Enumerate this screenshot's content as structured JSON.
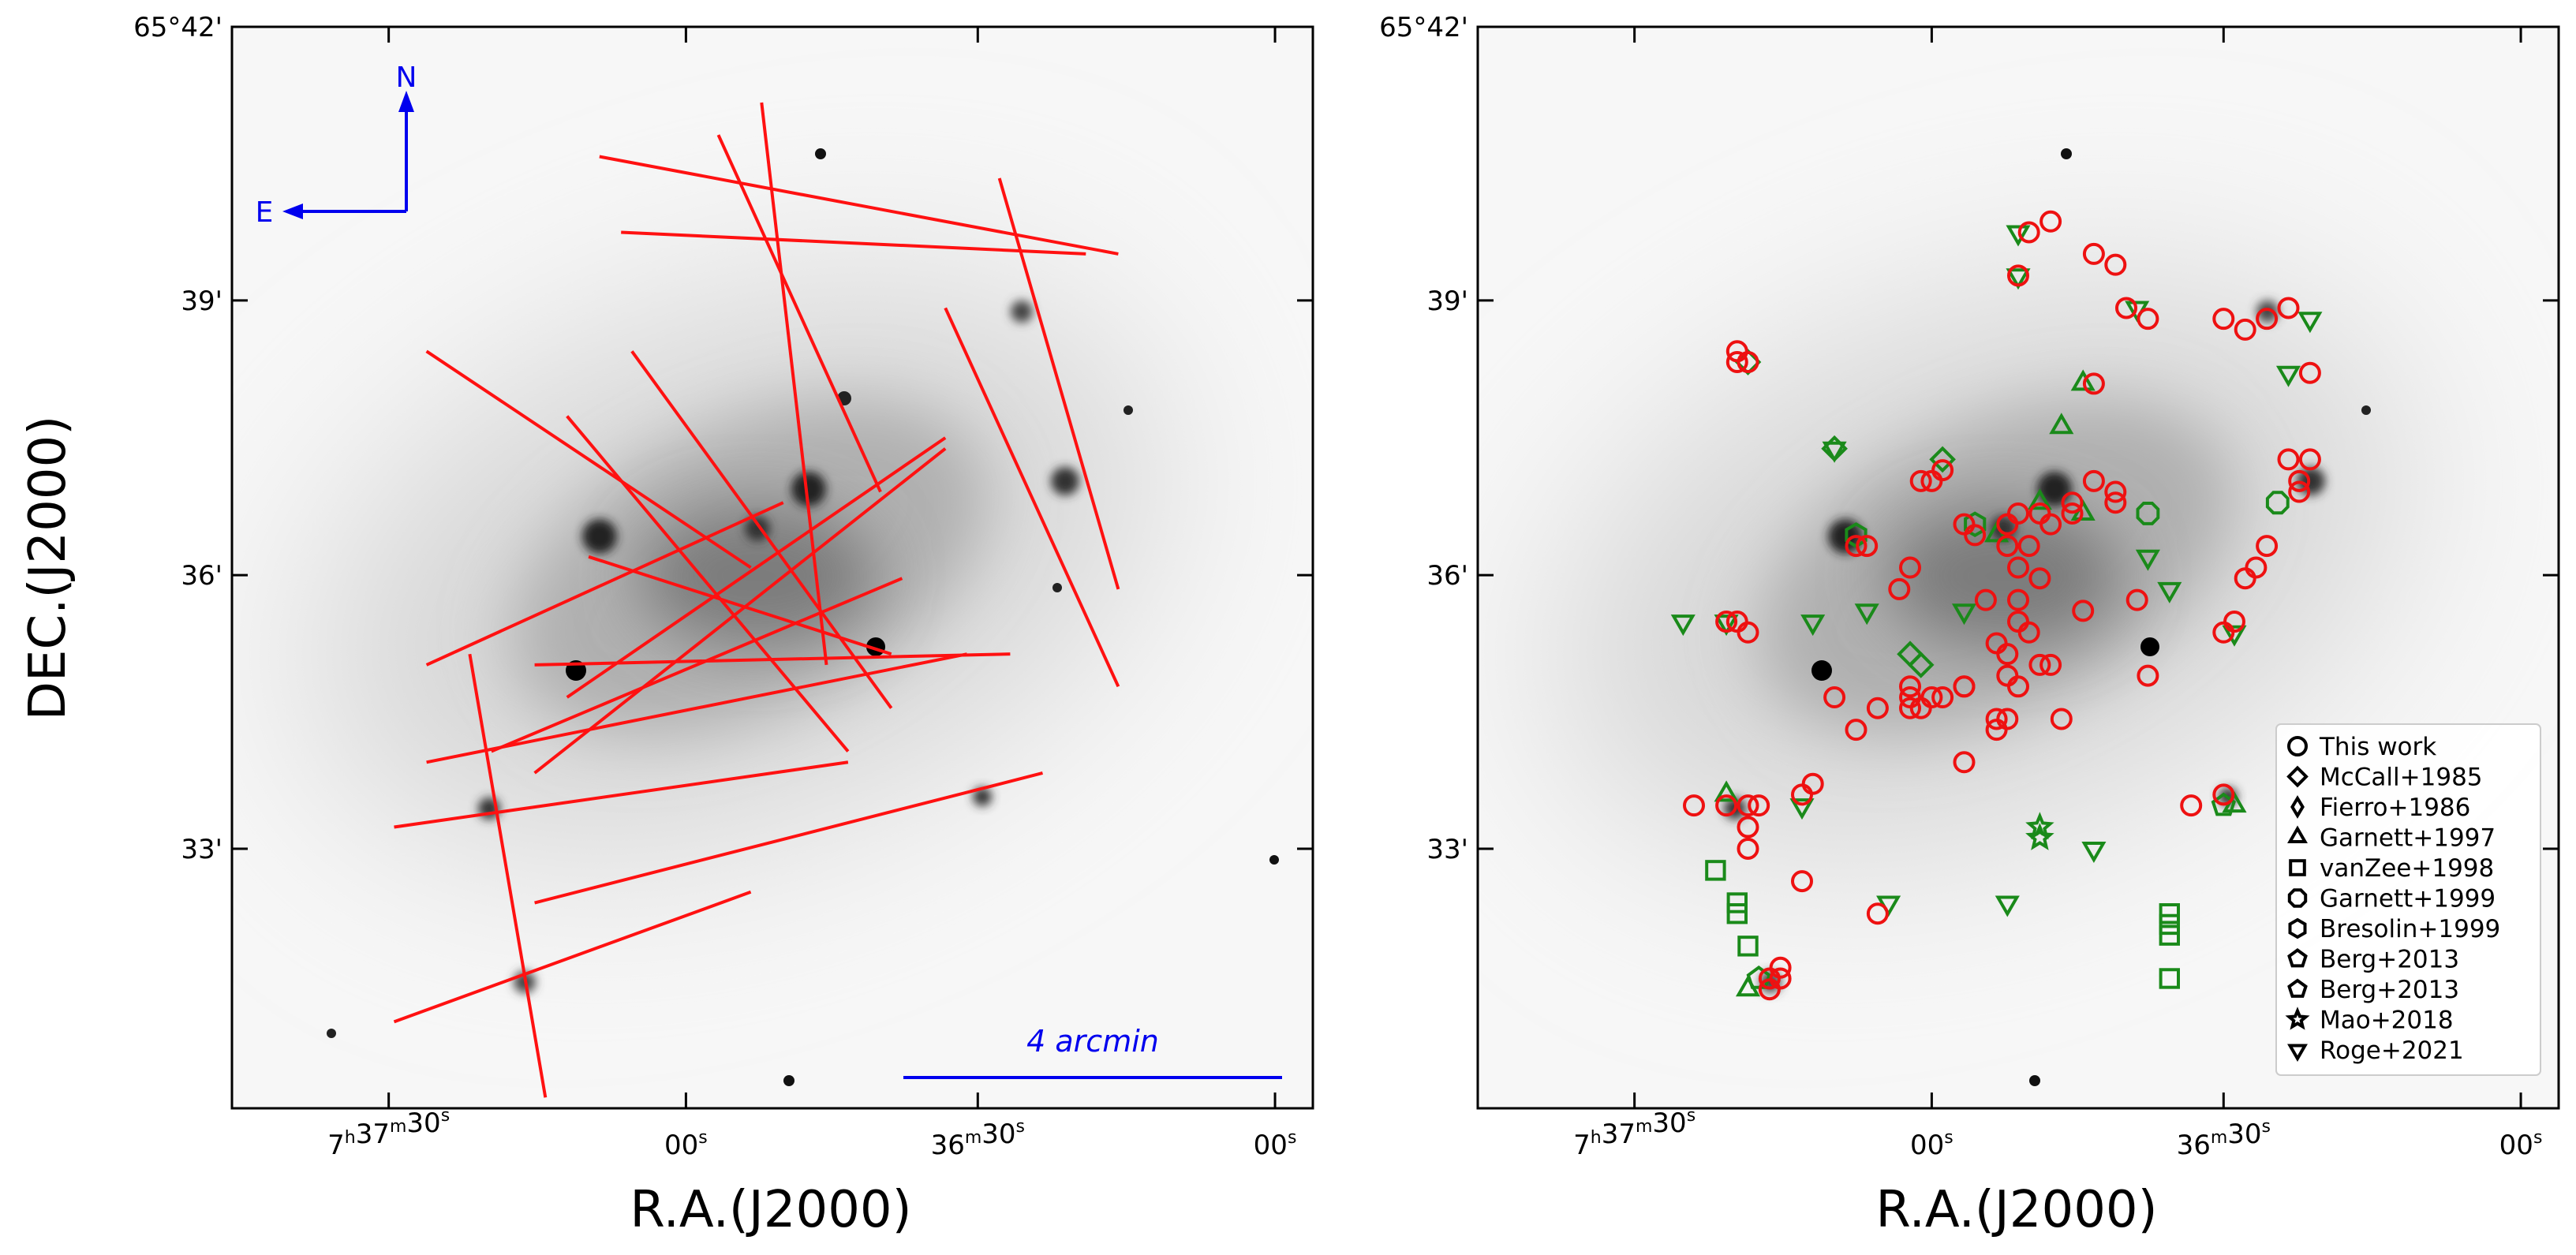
{
  "colors": {
    "slit": "#ff1111",
    "this_work": "#ee1111",
    "literature": "#1a8a1a",
    "compass": "#0000ee",
    "frame": "#000000"
  },
  "axes": {
    "ra_ticks": [
      {
        "h": "7",
        "m": "37",
        "s": "30"
      },
      {
        "s": "00"
      },
      {
        "m": "36",
        "s": "30"
      },
      {
        "s": "00"
      }
    ],
    "dec_ticks": [
      "65°42'",
      "39'",
      "36'",
      "33'"
    ],
    "xlabel": "R.A.(J2000)",
    "ylabel": "DEC.(J2000)"
  },
  "compass": {
    "north": "N",
    "east": "E"
  },
  "scale_bar": {
    "label": "4 arcmin"
  },
  "legend": [
    {
      "label": "This work",
      "marker": "circle"
    },
    {
      "label": "McCall+1985",
      "marker": "diamond"
    },
    {
      "label": "Fierro+1986",
      "marker": "thin-diamond"
    },
    {
      "label": "Garnett+1997",
      "marker": "triangle-up"
    },
    {
      "label": "vanZee+1998",
      "marker": "square"
    },
    {
      "label": "Garnett+1999",
      "marker": "octagon"
    },
    {
      "label": "Bresolin+1999",
      "marker": "hexagon"
    },
    {
      "label": "Berg+2013",
      "marker": "pentagon"
    },
    {
      "label": "Berg+2013",
      "marker": "pentagon"
    },
    {
      "label": "Mao+2018",
      "marker": "star"
    },
    {
      "label": "Roge+2021",
      "marker": "triangle-down"
    }
  ],
  "slits": [
    [
      0.45,
      0.1,
      0.6,
      0.43
    ],
    [
      0.18,
      0.3,
      0.48,
      0.5
    ],
    [
      0.49,
      0.07,
      0.55,
      0.59
    ],
    [
      0.36,
      0.19,
      0.79,
      0.21
    ],
    [
      0.66,
      0.26,
      0.82,
      0.61
    ],
    [
      0.71,
      0.14,
      0.82,
      0.52
    ],
    [
      0.34,
      0.12,
      0.82,
      0.21
    ],
    [
      0.37,
      0.3,
      0.61,
      0.63
    ],
    [
      0.31,
      0.36,
      0.57,
      0.67
    ],
    [
      0.28,
      0.69,
      0.66,
      0.39
    ],
    [
      0.31,
      0.62,
      0.66,
      0.38
    ],
    [
      0.24,
      0.67,
      0.62,
      0.51
    ],
    [
      0.18,
      0.68,
      0.68,
      0.58
    ],
    [
      0.18,
      0.59,
      0.51,
      0.44
    ],
    [
      0.28,
      0.59,
      0.72,
      0.58
    ],
    [
      0.33,
      0.49,
      0.61,
      0.58
    ],
    [
      0.15,
      0.74,
      0.57,
      0.68
    ],
    [
      0.15,
      0.92,
      0.48,
      0.8
    ],
    [
      0.28,
      0.81,
      0.75,
      0.69
    ],
    [
      0.22,
      0.58,
      0.29,
      0.99
    ]
  ],
  "this_work_points": [
    [
      0.53,
      0.18
    ],
    [
      0.51,
      0.19
    ],
    [
      0.5,
      0.23
    ],
    [
      0.57,
      0.21
    ],
    [
      0.59,
      0.22
    ],
    [
      0.6,
      0.26
    ],
    [
      0.62,
      0.27
    ],
    [
      0.69,
      0.27
    ],
    [
      0.71,
      0.28
    ],
    [
      0.73,
      0.27
    ],
    [
      0.75,
      0.26
    ],
    [
      0.77,
      0.32
    ],
    [
      0.75,
      0.4
    ],
    [
      0.77,
      0.4
    ],
    [
      0.76,
      0.42
    ],
    [
      0.76,
      0.43
    ],
    [
      0.73,
      0.48
    ],
    [
      0.72,
      0.5
    ],
    [
      0.25,
      0.31
    ],
    [
      0.57,
      0.33
    ],
    [
      0.59,
      0.43
    ],
    [
      0.59,
      0.44
    ],
    [
      0.57,
      0.42
    ],
    [
      0.55,
      0.44
    ],
    [
      0.55,
      0.45
    ],
    [
      0.52,
      0.45
    ],
    [
      0.53,
      0.46
    ],
    [
      0.5,
      0.45
    ],
    [
      0.49,
      0.46
    ],
    [
      0.49,
      0.48
    ],
    [
      0.5,
      0.5
    ],
    [
      0.51,
      0.48
    ],
    [
      0.45,
      0.46
    ],
    [
      0.46,
      0.47
    ],
    [
      0.43,
      0.41
    ],
    [
      0.42,
      0.42
    ],
    [
      0.41,
      0.42
    ],
    [
      0.36,
      0.48
    ],
    [
      0.35,
      0.48
    ],
    [
      0.4,
      0.5
    ],
    [
      0.39,
      0.52
    ],
    [
      0.52,
      0.51
    ],
    [
      0.47,
      0.53
    ],
    [
      0.5,
      0.53
    ],
    [
      0.48,
      0.57
    ],
    [
      0.5,
      0.55
    ],
    [
      0.51,
      0.56
    ],
    [
      0.49,
      0.58
    ],
    [
      0.52,
      0.59
    ],
    [
      0.49,
      0.6
    ],
    [
      0.5,
      0.61
    ],
    [
      0.53,
      0.59
    ],
    [
      0.43,
      0.62
    ],
    [
      0.45,
      0.61
    ],
    [
      0.4,
      0.61
    ],
    [
      0.4,
      0.62
    ],
    [
      0.4,
      0.63
    ],
    [
      0.49,
      0.64
    ],
    [
      0.48,
      0.64
    ],
    [
      0.48,
      0.65
    ],
    [
      0.45,
      0.61
    ],
    [
      0.54,
      0.64
    ],
    [
      0.56,
      0.54
    ],
    [
      0.61,
      0.53
    ],
    [
      0.62,
      0.6
    ],
    [
      0.7,
      0.55
    ],
    [
      0.71,
      0.51
    ],
    [
      0.69,
      0.56
    ],
    [
      0.23,
      0.55
    ],
    [
      0.24,
      0.55
    ],
    [
      0.37,
      0.63
    ],
    [
      0.33,
      0.62
    ],
    [
      0.31,
      0.7
    ],
    [
      0.35,
      0.65
    ],
    [
      0.25,
      0.56
    ],
    [
      0.23,
      0.72
    ],
    [
      0.25,
      0.72
    ],
    [
      0.26,
      0.72
    ],
    [
      0.25,
      0.74
    ],
    [
      0.25,
      0.76
    ],
    [
      0.2,
      0.72
    ],
    [
      0.3,
      0.71
    ],
    [
      0.45,
      0.68
    ],
    [
      0.66,
      0.72
    ],
    [
      0.69,
      0.71
    ],
    [
      0.3,
      0.79
    ],
    [
      0.37,
      0.82
    ],
    [
      0.27,
      0.88
    ],
    [
      0.28,
      0.88
    ],
    [
      0.27,
      0.89
    ],
    [
      0.28,
      0.87
    ],
    [
      0.24,
      0.31
    ],
    [
      0.24,
      0.3
    ],
    [
      0.42,
      0.62
    ],
    [
      0.41,
      0.63
    ]
  ],
  "literature_points": [
    [
      0.5,
      0.19,
      "triangle-down"
    ],
    [
      0.5,
      0.23,
      "triangle-down"
    ],
    [
      0.61,
      0.26,
      "triangle-down"
    ],
    [
      0.77,
      0.27,
      "triangle-down"
    ],
    [
      0.75,
      0.32,
      "triangle-down"
    ],
    [
      0.33,
      0.39,
      "triangle-down"
    ],
    [
      0.64,
      0.52,
      "triangle-down"
    ],
    [
      0.62,
      0.49,
      "triangle-down"
    ],
    [
      0.19,
      0.55,
      "triangle-down"
    ],
    [
      0.23,
      0.55,
      "triangle-down"
    ],
    [
      0.31,
      0.55,
      "triangle-down"
    ],
    [
      0.36,
      0.54,
      "triangle-down"
    ],
    [
      0.45,
      0.54,
      "triangle-down"
    ],
    [
      0.38,
      0.81,
      "triangle-down"
    ],
    [
      0.49,
      0.81,
      "triangle-down"
    ],
    [
      0.57,
      0.76,
      "triangle-down"
    ],
    [
      0.3,
      0.72,
      "triangle-down"
    ],
    [
      0.7,
      0.56,
      "triangle-down"
    ],
    [
      0.25,
      0.31,
      "diamond"
    ],
    [
      0.33,
      0.39,
      "diamond"
    ],
    [
      0.4,
      0.58,
      "diamond"
    ],
    [
      0.41,
      0.59,
      "diamond"
    ],
    [
      0.43,
      0.4,
      "diamond"
    ],
    [
      0.54,
      0.37,
      "triangle-up"
    ],
    [
      0.56,
      0.33,
      "triangle-up"
    ],
    [
      0.56,
      0.45,
      "triangle-up"
    ],
    [
      0.23,
      0.71,
      "triangle-up"
    ],
    [
      0.25,
      0.89,
      "triangle-up"
    ],
    [
      0.7,
      0.72,
      "triangle-up"
    ],
    [
      0.52,
      0.44,
      "triangle-up"
    ],
    [
      0.48,
      0.47,
      "triangle-up"
    ],
    [
      0.22,
      0.78,
      "square"
    ],
    [
      0.24,
      0.81,
      "square"
    ],
    [
      0.24,
      0.82,
      "square"
    ],
    [
      0.25,
      0.85,
      "square"
    ],
    [
      0.64,
      0.82,
      "square"
    ],
    [
      0.64,
      0.83,
      "square"
    ],
    [
      0.64,
      0.84,
      "square"
    ],
    [
      0.64,
      0.88,
      "square"
    ],
    [
      0.74,
      0.44,
      "octagon"
    ],
    [
      0.62,
      0.45,
      "octagon"
    ],
    [
      0.35,
      0.47,
      "hexagon"
    ],
    [
      0.46,
      0.46,
      "hexagon"
    ],
    [
      0.69,
      0.72,
      "pentagon"
    ],
    [
      0.26,
      0.88,
      "pentagon"
    ],
    [
      0.52,
      0.74,
      "star"
    ],
    [
      0.52,
      0.75,
      "star"
    ]
  ]
}
